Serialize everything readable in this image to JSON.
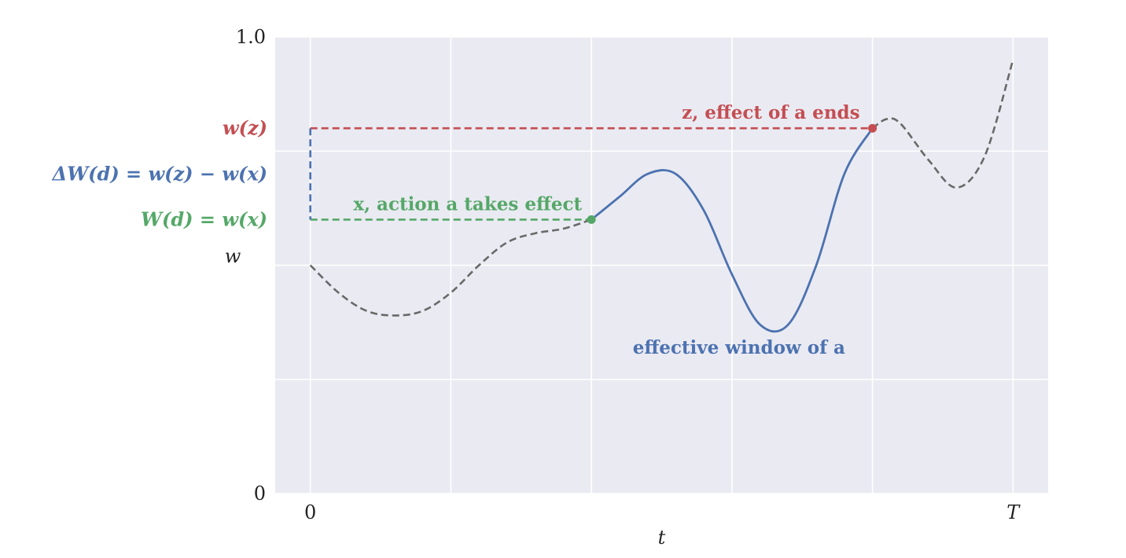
{
  "chart_data": {
    "type": "line",
    "title": "",
    "xlabel": "t",
    "ylabel": "w",
    "xlim": [
      -0.25,
      5.25
    ],
    "ylim": [
      0,
      1.0
    ],
    "grid": true,
    "x_ticks": [
      {
        "value": 0,
        "label": "0"
      },
      {
        "value": 1,
        "label": ""
      },
      {
        "value": 2,
        "label": ""
      },
      {
        "value": 3,
        "label": ""
      },
      {
        "value": 4,
        "label": ""
      },
      {
        "value": 5,
        "label": "T"
      }
    ],
    "y_ticks": [
      {
        "value": 0,
        "label": "0"
      },
      {
        "value": 0.25,
        "label": ""
      },
      {
        "value": 0.5,
        "label": ""
      },
      {
        "value": 0.75,
        "label": ""
      },
      {
        "value": 1.0,
        "label": "1.0"
      }
    ],
    "curve": {
      "x": [
        0,
        0.2,
        0.4,
        0.6,
        0.8,
        1.0,
        1.2,
        1.4,
        1.6,
        1.8,
        2.0,
        2.2,
        2.4,
        2.6,
        2.8,
        3.0,
        3.2,
        3.4,
        3.6,
        3.8,
        4.0,
        4.1,
        4.2,
        4.4,
        4.6,
        4.8,
        5.0
      ],
      "y": [
        0.5,
        0.44,
        0.4,
        0.39,
        0.4,
        0.44,
        0.5,
        0.55,
        0.57,
        0.58,
        0.6,
        0.65,
        0.7,
        0.7,
        0.62,
        0.48,
        0.37,
        0.37,
        0.5,
        0.7,
        0.8,
        0.82,
        0.81,
        0.73,
        0.67,
        0.74,
        0.95
      ],
      "effective_range": [
        2.0,
        4.0
      ]
    },
    "points": [
      {
        "x": 2.0,
        "y": 0.6,
        "color": "#55A868"
      },
      {
        "x": 4.0,
        "y": 0.8,
        "color": "#C44E52"
      }
    ],
    "annotations": [
      {
        "text": "z, effect of a ends",
        "color": "#C44E52"
      },
      {
        "text": "x, action a takes effect",
        "color": "#55A868"
      },
      {
        "text": "effective window of a",
        "color": "#4C72B0"
      }
    ],
    "side_labels": [
      {
        "text": "w(z)",
        "color": "#C44E52",
        "y": 0.8
      },
      {
        "text": "ΔW(d) = w(z) − w(x)",
        "color": "#4C72B0",
        "y": 0.7
      },
      {
        "text": "W(d) = w(x)",
        "color": "#55A868",
        "y": 0.6
      }
    ],
    "colors": {
      "background": "#EAEAF2",
      "grid": "#ffffff",
      "dashed_curve": "#696969",
      "effective": "#4C72B0",
      "z_line": "#C44E52",
      "x_line": "#55A868",
      "delta_line": "#4C72B0"
    }
  }
}
